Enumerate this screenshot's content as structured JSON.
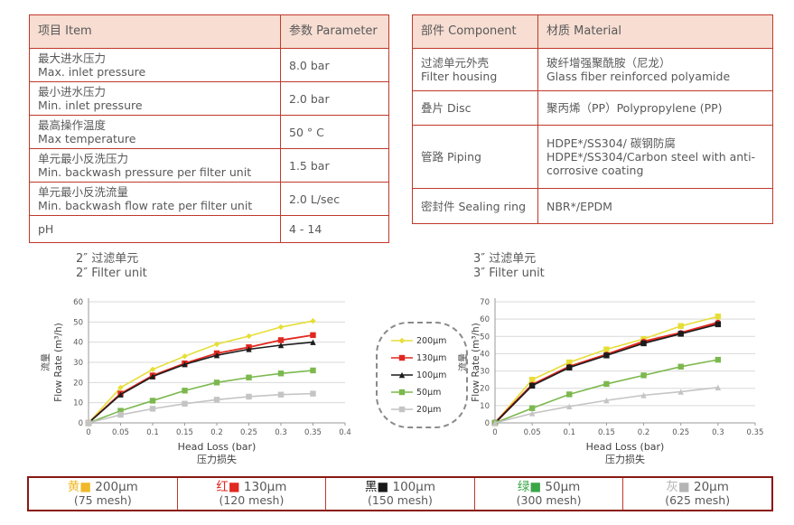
{
  "colors": {
    "table_border": "#c0392b",
    "header_fill": "#f7ddd2",
    "body_text": "#595959",
    "grid_line": "#d9d9d9",
    "axis_line": "#9a9a9a",
    "legend_box_border": "#8a8a8a",
    "mesh_bar_border": "#8a1713"
  },
  "spec_table": {
    "headers": [
      "项目 Item",
      "参数 Parameter"
    ],
    "rows": [
      {
        "item_zh": "最大进水压力",
        "item_en": "Max. inlet pressure",
        "value": "8.0 bar"
      },
      {
        "item_zh": "最小进水压力",
        "item_en": "Min. inlet pressure",
        "value": "2.0 bar"
      },
      {
        "item_zh": "最高操作温度",
        "item_en": "Max temperature",
        "value": "50 ° C"
      },
      {
        "item_zh": "单元最小反洗压力",
        "item_en": "Min. backwash pressure per filter unit",
        "value": "1.5 bar"
      },
      {
        "item_zh": "单元最小反洗流量",
        "item_en": "Min. backwash flow rate per filter unit",
        "value": "2.0 L/sec"
      },
      {
        "item_zh": "pH",
        "item_en": "",
        "value": "4 - 14"
      }
    ]
  },
  "material_table": {
    "headers": [
      "部件 Component",
      "材质 Material"
    ],
    "rows": [
      {
        "component_zh": "过滤单元外壳",
        "component_en": "Filter housing",
        "material_zh": "玻纤增强聚酰胺（尼龙）",
        "material_en": "Glass fiber reinforced polyamide"
      },
      {
        "component_zh": "叠片 Disc",
        "component_en": "",
        "material_zh": "聚丙烯（PP）Polypropylene (PP)",
        "material_en": ""
      },
      {
        "component_zh": "管路 Piping",
        "component_en": "",
        "material_zh": "HDPE*/SS304/ 碳钢防腐",
        "material_en": "HDPE*/SS304/Carbon steel with anti-corrosive coating"
      },
      {
        "component_zh": "密封件 Sealing ring",
        "component_en": "",
        "material_zh": "NBR*/EPDM",
        "material_en": ""
      }
    ]
  },
  "chart_data": [
    {
      "type": "line",
      "title_zh": "2″ 过滤单元",
      "title_en": "2″ Filter unit",
      "xlabel": "Head Loss (bar)",
      "xlabel_zh": "压力损失",
      "ylabel": "Flow Rate (m³/h)",
      "ylabel_zh": "流量",
      "xlim": [
        0,
        0.4
      ],
      "ylim": [
        0,
        60
      ],
      "xtick_step": 0.05,
      "ytick_step": 10,
      "grid": true,
      "legend_position": "right-outside",
      "x": [
        0,
        0.05,
        0.1,
        0.15,
        0.2,
        0.25,
        0.3,
        0.35
      ],
      "series": [
        {
          "name": "200μm",
          "color": "#e6de38",
          "marker": "diamond",
          "width": 1.6,
          "values": [
            0,
            17.5,
            26.5,
            33,
            39,
            43,
            47.5,
            50.5
          ]
        },
        {
          "name": "130μm",
          "color": "#e02820",
          "marker": "square",
          "width": 1.8,
          "values": [
            0,
            14.5,
            23.5,
            29.5,
            34.5,
            37.5,
            41,
            43.5
          ]
        },
        {
          "name": "100μm",
          "color": "#1c1c1c",
          "marker": "triangle",
          "width": 1.6,
          "values": [
            0,
            14,
            23,
            29,
            33.5,
            36.5,
            38.5,
            40
          ]
        },
        {
          "name": "50μm",
          "color": "#7cb84e",
          "marker": "square",
          "width": 1.6,
          "values": [
            0,
            6,
            11,
            16,
            20,
            22.5,
            24.5,
            26
          ]
        },
        {
          "name": "20μm",
          "color": "#c4c4c4",
          "marker": "square",
          "width": 1.6,
          "values": [
            0,
            4,
            7,
            9.5,
            11.5,
            13,
            14,
            14.5
          ]
        }
      ]
    },
    {
      "type": "line",
      "title_zh": "3″ 过滤单元",
      "title_en": "3″ Filter unit",
      "xlabel": "Head Loss (bar)",
      "xlabel_zh": "压力损失",
      "ylabel": "Flow Rate (m³/h)",
      "ylabel_zh": "流量",
      "xlim": [
        0,
        0.35
      ],
      "ylim": [
        0,
        70
      ],
      "xtick_step": 0.05,
      "ytick_step": 10,
      "grid": true,
      "legend_position": "none",
      "x": [
        0,
        0.05,
        0.1,
        0.15,
        0.2,
        0.25,
        0.3
      ],
      "series": [
        {
          "name": "200μm",
          "color": "#e6de38",
          "marker": "square",
          "width": 1.6,
          "values": [
            0,
            25,
            35,
            42.5,
            48.5,
            56,
            61.5
          ]
        },
        {
          "name": "130μm",
          "color": "#e02820",
          "marker": "circle",
          "width": 2.4,
          "values": [
            0,
            22,
            32.5,
            39.5,
            47,
            52,
            58
          ]
        },
        {
          "name": "100μm",
          "color": "#1c1c1c",
          "marker": "square",
          "width": 1.6,
          "values": [
            0,
            21.5,
            32,
            39,
            46,
            51.5,
            57
          ]
        },
        {
          "name": "50μm",
          "color": "#7cb84e",
          "marker": "square",
          "width": 1.6,
          "values": [
            0,
            8.5,
            16.5,
            22.5,
            27.5,
            32.5,
            36.5
          ]
        },
        {
          "name": "20μm",
          "color": "#c4c4c4",
          "marker": "triangle",
          "width": 1.6,
          "values": [
            0,
            5.5,
            9.5,
            13,
            16,
            18,
            20.5
          ]
        }
      ]
    }
  ],
  "chart_legend": {
    "entries": [
      {
        "label": "200μm",
        "color": "#e6de38",
        "marker": "diamond"
      },
      {
        "label": "130μm",
        "color": "#e02820",
        "marker": "square"
      },
      {
        "label": "100μm",
        "color": "#1c1c1c",
        "marker": "triangle"
      },
      {
        "label": "50μm",
        "color": "#7cb84e",
        "marker": "square"
      },
      {
        "label": "20μm",
        "color": "#c4c4c4",
        "marker": "square"
      }
    ]
  },
  "mesh_legend": {
    "cells": [
      {
        "color_zh": "黄",
        "swatch": "■",
        "color": "#f0b929",
        "size": "200μm",
        "mesh": "(75 mesh)"
      },
      {
        "color_zh": "红",
        "swatch": "■",
        "color": "#e02820",
        "size": "130μm",
        "mesh": "(120 mesh)"
      },
      {
        "color_zh": "黑",
        "swatch": "■",
        "color": "#1a1a1a",
        "size": "100μm",
        "mesh": "(150 mesh)"
      },
      {
        "color_zh": "绿",
        "swatch": "■",
        "color": "#3aa647",
        "size": "50μm",
        "mesh": "(300 mesh)"
      },
      {
        "color_zh": "灰",
        "swatch": "■",
        "color": "#b5b5b5",
        "size": "20μm",
        "mesh": "(625 mesh)"
      }
    ]
  }
}
